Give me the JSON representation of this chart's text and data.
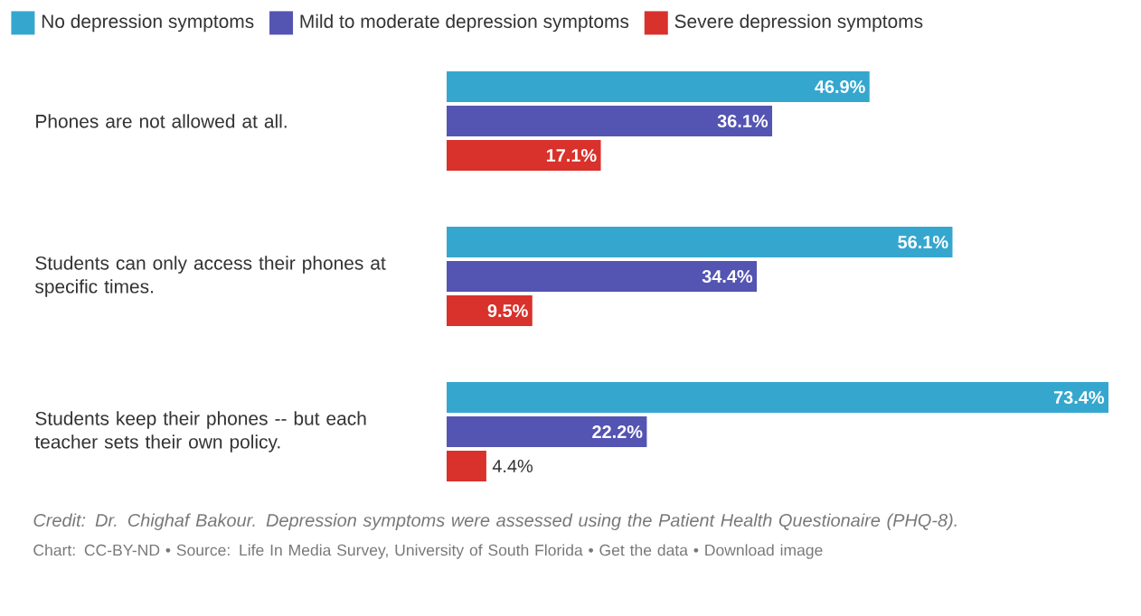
{
  "chart_data": {
    "type": "bar",
    "orientation": "horizontal",
    "legend": "top left",
    "categories": [
      "Phones are not allowed at all.",
      "Students can only access their phones at specific times.",
      "Students keep their phones -- but each teacher sets their own policy."
    ],
    "series": [
      {
        "name": "No depression symptoms",
        "color": "#35a7cf",
        "values": [
          46.9,
          56.1,
          73.4
        ],
        "value_labels": [
          "46.9%",
          "56.1%",
          "73.4%"
        ]
      },
      {
        "name": "Mild to moderate depression symptoms",
        "color": "#5454b3",
        "values": [
          36.1,
          34.4,
          22.2
        ],
        "value_labels": [
          "36.1%",
          "34.4%",
          "22.2%"
        ]
      },
      {
        "name": "Severe depression symptoms",
        "color": "#d9312b",
        "values": [
          17.1,
          9.5,
          4.4
        ],
        "value_labels": [
          "17.1%",
          "9.5%",
          "4.4%"
        ]
      }
    ],
    "annotations": [
      "Credit: Dr. Chighaf Bakour. Depression symptoms were assessed using the Patient Health Questionaire (PHQ-8).",
      "Chart: CC-BY-ND • Source: Life In Media Survey, University of South Florida • Get the data • Download image"
    ]
  }
}
